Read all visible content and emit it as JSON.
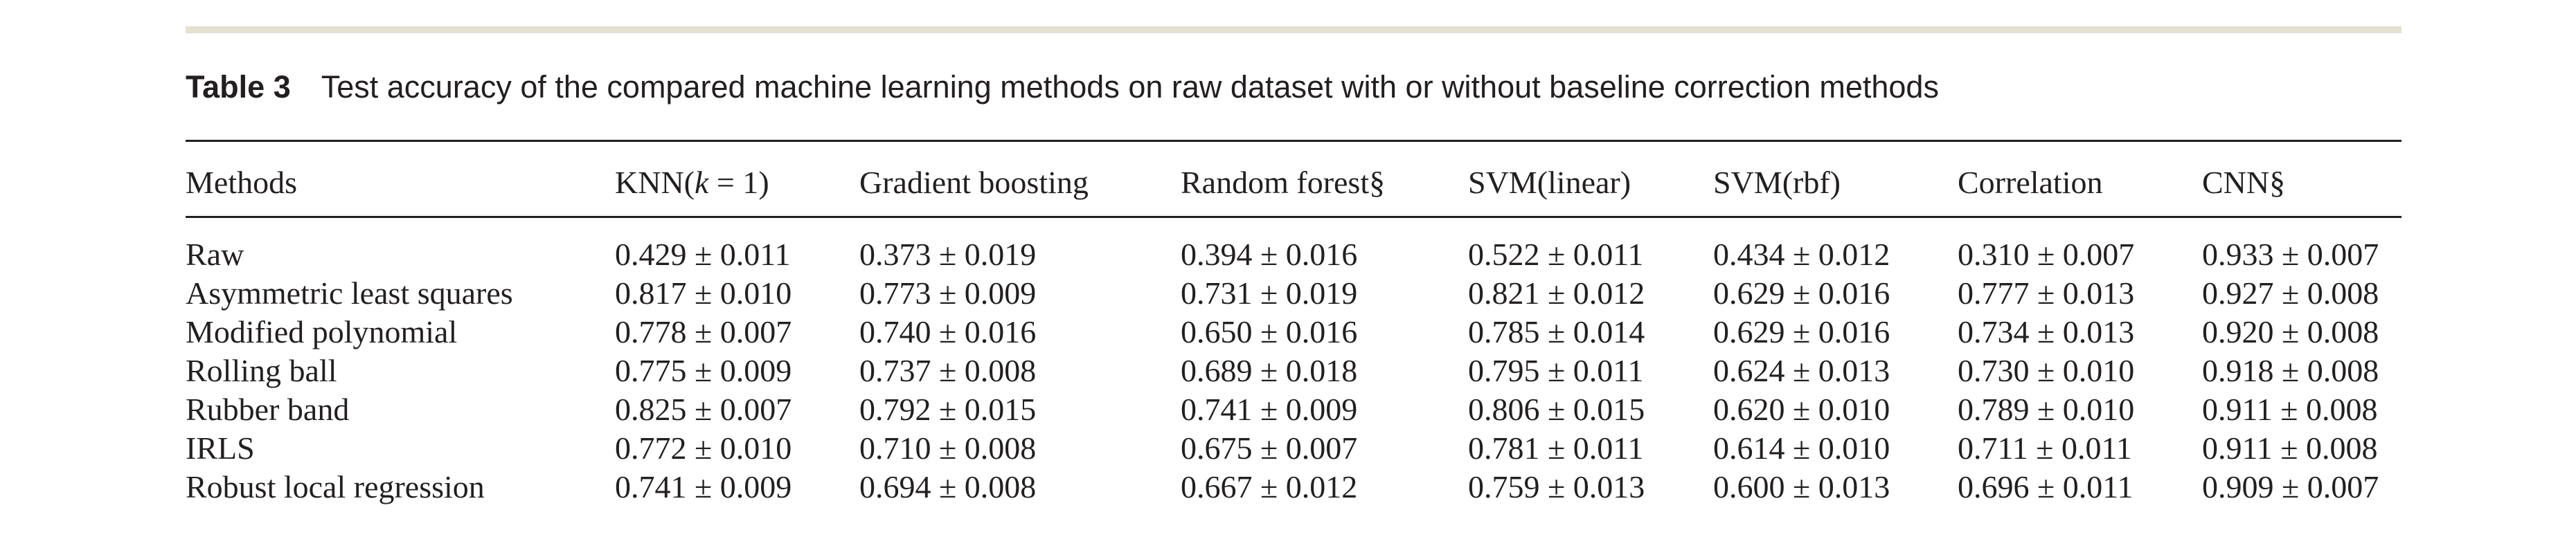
{
  "caption": {
    "label": "Table 3",
    "text": "Test accuracy of the compared machine learning methods on raw dataset with or without baseline correction methods"
  },
  "table": {
    "headers": {
      "methods": "Methods",
      "knn_prefix": "KNN(",
      "knn_var": "k",
      "knn_suffix": " = 1)",
      "gradient_boosting": "Gradient boosting",
      "random_forest": "Random forest§",
      "svm_linear": "SVM(linear)",
      "svm_rbf": "SVM(rbf)",
      "correlation": "Correlation",
      "cnn": "CNN§"
    },
    "rows": [
      [
        "Raw",
        "0.429 ± 0.011",
        "0.373 ± 0.019",
        "0.394 ± 0.016",
        "0.522 ± 0.011",
        "0.434 ± 0.012",
        "0.310 ± 0.007",
        "0.933 ± 0.007"
      ],
      [
        "Asymmetric least squares",
        "0.817 ± 0.010",
        "0.773 ± 0.009",
        "0.731 ± 0.019",
        "0.821 ± 0.012",
        "0.629 ± 0.016",
        "0.777 ± 0.013",
        "0.927 ± 0.008"
      ],
      [
        "Modified polynomial",
        "0.778 ± 0.007",
        "0.740 ± 0.016",
        "0.650 ± 0.016",
        "0.785 ± 0.014",
        "0.629 ± 0.016",
        "0.734 ± 0.013",
        "0.920 ± 0.008"
      ],
      [
        "Rolling ball",
        "0.775 ± 0.009",
        "0.737 ± 0.008",
        "0.689 ± 0.018",
        "0.795 ± 0.011",
        "0.624 ± 0.013",
        "0.730 ± 0.010",
        "0.918 ± 0.008"
      ],
      [
        "Rubber band",
        "0.825 ± 0.007",
        "0.792 ± 0.015",
        "0.741 ± 0.009",
        "0.806 ± 0.015",
        "0.620 ± 0.010",
        "0.789 ± 0.010",
        "0.911 ± 0.008"
      ],
      [
        "IRLS",
        "0.772 ± 0.010",
        "0.710 ± 0.008",
        "0.675 ± 0.007",
        "0.781 ± 0.011",
        "0.614 ± 0.010",
        "0.711 ± 0.011",
        "0.911 ± 0.008"
      ],
      [
        "Robust local regression",
        "0.741 ± 0.009",
        "0.694 ± 0.008",
        "0.667 ± 0.012",
        "0.759 ± 0.013",
        "0.600 ± 0.013",
        "0.696 ± 0.011",
        "0.909 ± 0.007"
      ]
    ]
  }
}
